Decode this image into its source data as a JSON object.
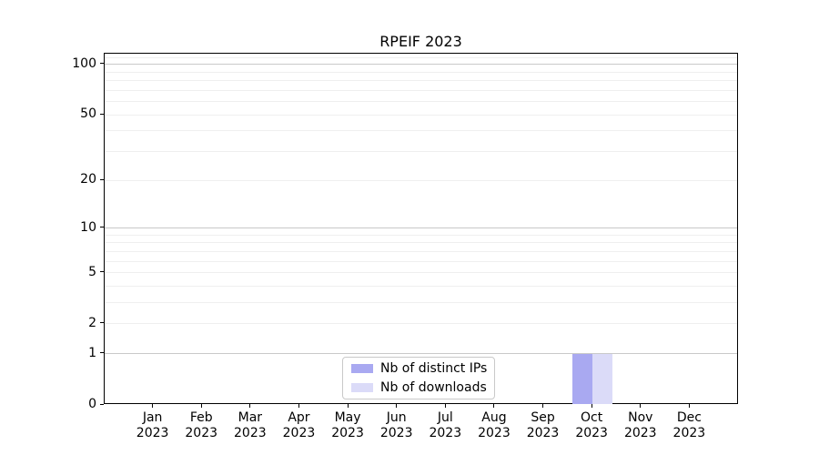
{
  "title": "RPEIF 2023",
  "chart_data": {
    "type": "bar",
    "title": "RPEIF 2023",
    "categories": [
      "Jan",
      "Feb",
      "Mar",
      "Apr",
      "May",
      "Jun",
      "Jul",
      "Aug",
      "Sep",
      "Oct",
      "Nov",
      "Dec"
    ],
    "year_label": "2023",
    "series": [
      {
        "name": "Nb of distinct IPs",
        "color": "#a9a9f1",
        "values": [
          0,
          0,
          0,
          0,
          0,
          0,
          0,
          0,
          0,
          1,
          0,
          0
        ]
      },
      {
        "name": "Nb of downloads",
        "color": "#dbdbf8",
        "values": [
          0,
          0,
          0,
          0,
          0,
          0,
          0,
          0,
          0,
          1,
          0,
          0
        ]
      }
    ],
    "yticks": [
      0,
      1,
      2,
      5,
      10,
      20,
      50,
      100
    ],
    "ylim": [
      0,
      116
    ],
    "y_scale": "log10(1+y)",
    "grid": true,
    "legend_position": "lower center",
    "xlabel": "",
    "ylabel": ""
  },
  "colors": {
    "major_grid": "#c9c9c9",
    "minor_grid": "#efefef",
    "axis": "#000000",
    "legend_border": "#c9c9c9",
    "background": "#ffffff"
  }
}
